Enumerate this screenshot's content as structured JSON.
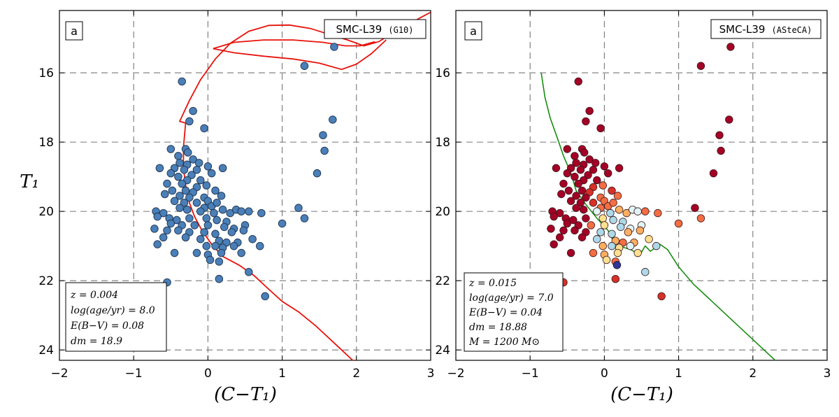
{
  "chart_data": [
    {
      "type": "scatter",
      "panel_tag": "a",
      "title": "SMC-L39",
      "title_suffix": "(G10)",
      "xlabel": "(C−T₁)",
      "ylabel": "T₁",
      "xlim": [
        -2,
        3
      ],
      "ylim": [
        24.3,
        14.2
      ],
      "y_inverted": true,
      "xticks": [
        -2,
        -1,
        0,
        1,
        2,
        3
      ],
      "yticks": [
        16,
        18,
        20,
        22,
        24
      ],
      "grid": true,
      "params": [
        "z = 0.004",
        "log(age/yr) = 8.0",
        "E(B−V) = 0.08",
        "dm = 18.9"
      ],
      "params_box": "bottom-left",
      "point_color": "#4a7fb8",
      "isochrone_color": "#e8120c",
      "points": [
        [
          -0.35,
          16.25
        ],
        [
          -0.2,
          17.1
        ],
        [
          -0.25,
          17.4
        ],
        [
          -0.05,
          17.6
        ],
        [
          -0.5,
          18.2
        ],
        [
          -0.3,
          18.2
        ],
        [
          -0.4,
          18.4
        ],
        [
          -0.27,
          18.3
        ],
        [
          -0.2,
          18.5
        ],
        [
          -0.38,
          18.6
        ],
        [
          -0.28,
          18.65
        ],
        [
          -0.12,
          18.6
        ],
        [
          -0.65,
          18.75
        ],
        [
          -0.45,
          18.75
        ],
        [
          -0.32,
          18.8
        ],
        [
          -0.15,
          18.8
        ],
        [
          0.0,
          18.7
        ],
        [
          0.2,
          18.75
        ],
        [
          -0.5,
          18.9
        ],
        [
          -0.22,
          18.95
        ],
        [
          0.05,
          18.9
        ],
        [
          -0.4,
          19.0
        ],
        [
          -0.28,
          19.1
        ],
        [
          -0.1,
          19.1
        ],
        [
          -0.55,
          19.2
        ],
        [
          -0.35,
          19.2
        ],
        [
          -0.15,
          19.3
        ],
        [
          -0.02,
          19.25
        ],
        [
          -0.48,
          19.4
        ],
        [
          -0.3,
          19.4
        ],
        [
          -0.2,
          19.45
        ],
        [
          0.1,
          19.4
        ],
        [
          -0.58,
          19.5
        ],
        [
          -0.38,
          19.55
        ],
        [
          -0.25,
          19.6
        ],
        [
          -0.05,
          19.6
        ],
        [
          0.18,
          19.55
        ],
        [
          -0.45,
          19.7
        ],
        [
          -0.32,
          19.75
        ],
        [
          -0.15,
          19.75
        ],
        [
          0.0,
          19.7
        ],
        [
          -0.05,
          19.9
        ],
        [
          -0.38,
          19.9
        ],
        [
          -0.28,
          19.95
        ],
        [
          0.05,
          19.85
        ],
        [
          0.12,
          19.75
        ],
        [
          -0.7,
          20.0
        ],
        [
          -0.6,
          20.05
        ],
        [
          -0.1,
          20.0
        ],
        [
          0.08,
          20.05
        ],
        [
          0.2,
          19.95
        ],
        [
          0.3,
          20.05
        ],
        [
          0.38,
          19.95
        ],
        [
          0.45,
          20.0
        ],
        [
          0.55,
          20.0
        ],
        [
          0.72,
          20.05
        ],
        [
          -0.68,
          20.15
        ],
        [
          -0.52,
          20.2
        ],
        [
          -0.42,
          20.25
        ],
        [
          -0.25,
          20.2
        ],
        [
          -0.02,
          20.2
        ],
        [
          0.12,
          20.25
        ],
        [
          0.25,
          20.3
        ],
        [
          -0.5,
          20.35
        ],
        [
          -0.35,
          20.4
        ],
        [
          -0.18,
          20.4
        ],
        [
          0.0,
          20.4
        ],
        [
          0.22,
          20.45
        ],
        [
          0.35,
          20.5
        ],
        [
          0.5,
          20.4
        ],
        [
          1.0,
          20.35
        ],
        [
          -0.72,
          20.5
        ],
        [
          -0.55,
          20.55
        ],
        [
          -0.4,
          20.55
        ],
        [
          -0.25,
          20.6
        ],
        [
          -0.05,
          20.6
        ],
        [
          0.1,
          20.65
        ],
        [
          0.32,
          20.6
        ],
        [
          0.48,
          20.55
        ],
        [
          -0.6,
          20.75
        ],
        [
          -0.3,
          20.75
        ],
        [
          -0.1,
          20.8
        ],
        [
          0.15,
          20.85
        ],
        [
          0.25,
          20.9
        ],
        [
          0.4,
          20.9
        ],
        [
          0.6,
          20.8
        ],
        [
          -0.68,
          20.95
        ],
        [
          -0.02,
          21.0
        ],
        [
          0.1,
          21.0
        ],
        [
          0.2,
          21.05
        ],
        [
          0.35,
          21.0
        ],
        [
          0.7,
          21.0
        ],
        [
          -0.45,
          21.2
        ],
        [
          -0.15,
          21.2
        ],
        [
          0.0,
          21.25
        ],
        [
          0.18,
          21.2
        ],
        [
          0.45,
          21.2
        ],
        [
          0.03,
          21.4
        ],
        [
          0.15,
          21.45
        ],
        [
          0.55,
          21.75
        ],
        [
          0.15,
          21.95
        ],
        [
          -0.55,
          22.05
        ],
        [
          0.77,
          22.45
        ],
        [
          1.3,
          15.8
        ],
        [
          1.7,
          15.25
        ],
        [
          1.22,
          19.9
        ],
        [
          1.3,
          20.2
        ],
        [
          1.47,
          18.9
        ],
        [
          1.55,
          17.8
        ],
        [
          1.57,
          18.25
        ],
        [
          1.68,
          17.35
        ]
      ],
      "points_highlight": [
        [
          -0.75,
          22.25
        ]
      ],
      "highlight_color": "#b9d2ea",
      "isochrone": [
        [
          1.95,
          24.3
        ],
        [
          1.7,
          23.8
        ],
        [
          1.45,
          23.3
        ],
        [
          1.22,
          22.9
        ],
        [
          1.0,
          22.6
        ],
        [
          0.82,
          22.25
        ],
        [
          0.62,
          21.85
        ],
        [
          0.42,
          21.55
        ],
        [
          0.2,
          21.3
        ],
        [
          0.05,
          20.95
        ],
        [
          -0.08,
          20.55
        ],
        [
          -0.18,
          20.15
        ],
        [
          -0.25,
          19.75
        ],
        [
          -0.3,
          19.25
        ],
        [
          -0.33,
          18.75
        ],
        [
          -0.33,
          18.15
        ],
        [
          -0.3,
          17.45
        ],
        [
          -0.38,
          17.4
        ],
        [
          -0.25,
          16.8
        ],
        [
          -0.1,
          16.2
        ],
        [
          0.1,
          15.6
        ],
        [
          0.3,
          15.15
        ],
        [
          0.55,
          14.8
        ],
        [
          0.82,
          14.63
        ],
        [
          1.1,
          14.62
        ],
        [
          1.38,
          14.72
        ],
        [
          1.62,
          14.88
        ],
        [
          1.88,
          15.05
        ],
        [
          2.1,
          15.22
        ],
        [
          2.3,
          15.1
        ],
        [
          2.45,
          14.9
        ],
        [
          2.62,
          14.7
        ],
        [
          2.85,
          14.42
        ],
        [
          3.0,
          14.25
        ]
      ],
      "isochrone_loops": [
        [
          [
            0.07,
            15.3
          ],
          [
            0.35,
            15.12
          ],
          [
            0.75,
            15.05
          ],
          [
            1.15,
            15.05
          ],
          [
            1.55,
            15.12
          ],
          [
            1.85,
            15.22
          ],
          [
            2.05,
            15.22
          ],
          [
            2.25,
            15.1
          ]
        ],
        [
          [
            0.07,
            15.3
          ],
          [
            0.35,
            15.42
          ],
          [
            0.75,
            15.52
          ],
          [
            1.15,
            15.6
          ],
          [
            1.5,
            15.72
          ],
          [
            1.8,
            15.9
          ],
          [
            2.0,
            15.75
          ],
          [
            2.2,
            15.45
          ],
          [
            2.4,
            15.05
          ]
        ]
      ]
    },
    {
      "type": "scatter",
      "panel_tag": "a",
      "title": "SMC-L39",
      "title_suffix": "(ASteCA)",
      "xlabel": "(C−T₁)",
      "ylabel": "",
      "xlim": [
        -2,
        3
      ],
      "ylim": [
        24.3,
        14.2
      ],
      "y_inverted": true,
      "xticks": [
        -2,
        -1,
        0,
        1,
        2,
        3
      ],
      "yticks": [
        16,
        18,
        20,
        22,
        24
      ],
      "grid": true,
      "params": [
        "z = 0.015",
        "log(age/yr) = 7.0",
        "E(B−V) = 0.04",
        "dm = 18.88",
        "M = 1200 M⊙"
      ],
      "params_box": "bottom-left",
      "isochrone_color": "#1a8c12",
      "membership_colors": [
        "#a50026",
        "#d73027",
        "#f46d43",
        "#fdae61",
        "#fee090",
        "#e0f3f8",
        "#abd9e9",
        "#313695"
      ],
      "isochrone": [
        [
          -0.85,
          16.0
        ],
        [
          -0.8,
          16.7
        ],
        [
          -0.73,
          17.3
        ],
        [
          -0.63,
          17.9
        ],
        [
          -0.55,
          18.4
        ],
        [
          -0.45,
          18.9
        ],
        [
          -0.38,
          19.4
        ],
        [
          -0.25,
          19.8
        ],
        [
          -0.1,
          20.2
        ],
        [
          0.05,
          20.55
        ],
        [
          0.12,
          20.85
        ],
        [
          0.2,
          21.0
        ],
        [
          0.35,
          21.1
        ],
        [
          0.48,
          21.25
        ],
        [
          0.55,
          21.0
        ],
        [
          0.62,
          21.15
        ],
        [
          0.75,
          20.95
        ],
        [
          0.85,
          21.1
        ],
        [
          1.0,
          21.6
        ],
        [
          1.2,
          22.1
        ],
        [
          1.45,
          22.6
        ],
        [
          1.7,
          23.1
        ],
        [
          1.95,
          23.6
        ],
        [
          2.15,
          24.0
        ],
        [
          2.3,
          24.3
        ]
      ]
    }
  ]
}
